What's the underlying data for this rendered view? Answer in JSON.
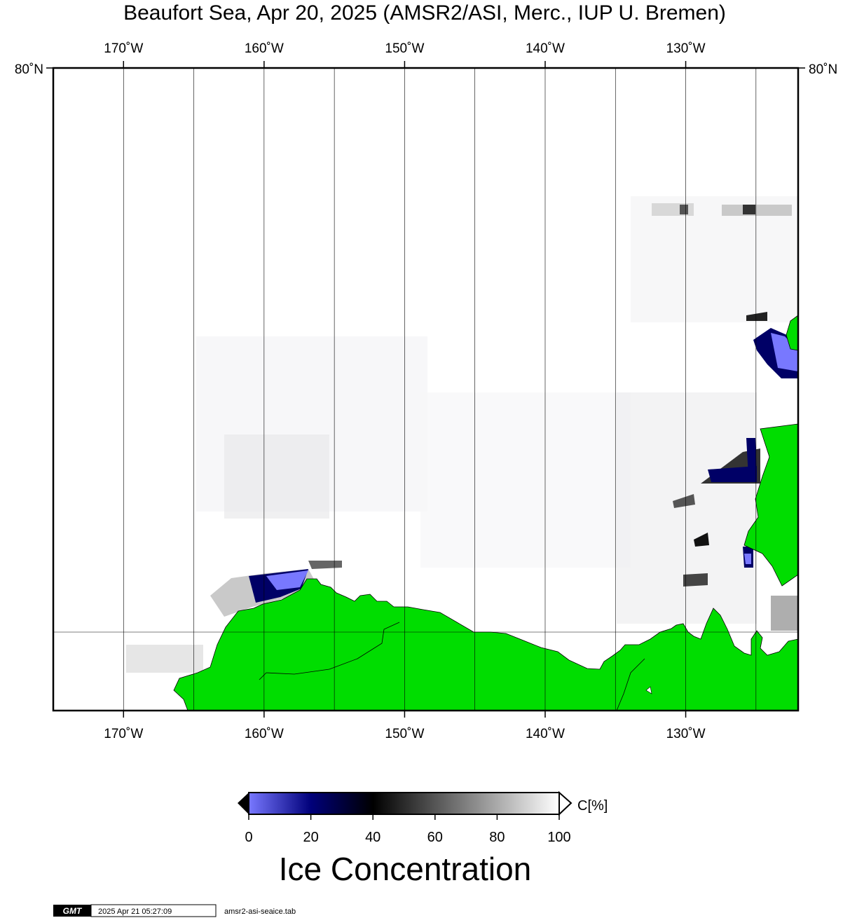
{
  "title": "Beaufort Sea, Apr 20, 2025 (AMSR2/ASI, Merc., IUP U. Bremen)",
  "map": {
    "lon_min": -175,
    "lon_max": -122,
    "lon_ticks": [
      {
        "lon": -170,
        "label": "170˚W"
      },
      {
        "lon": -160,
        "label": "160˚W"
      },
      {
        "lon": -150,
        "label": "150˚W"
      },
      {
        "lon": -140,
        "label": "140˚W"
      },
      {
        "lon": -130,
        "label": "130˚W"
      }
    ],
    "lat_label": "80˚N",
    "colors": {
      "land": "#00dd00",
      "frame": "#000000",
      "gridline": "#000000",
      "ocean": "#ffffff"
    }
  },
  "colorbar": {
    "unit_label": "C[%]",
    "ticks": [
      "0",
      "20",
      "40",
      "60",
      "80",
      "100"
    ],
    "stops": [
      {
        "value": 0,
        "color": "#7878ff"
      },
      {
        "value": 20,
        "color": "#00007a"
      },
      {
        "value": 40,
        "color": "#000000"
      },
      {
        "value": 100,
        "color": "#ffffff"
      }
    ],
    "title": "Ice Concentration"
  },
  "footer": {
    "logo_text": "GMT",
    "timestamp": "2025 Apr 21 05:27:09",
    "filename": "amsr2-asi-seaice.tab"
  }
}
